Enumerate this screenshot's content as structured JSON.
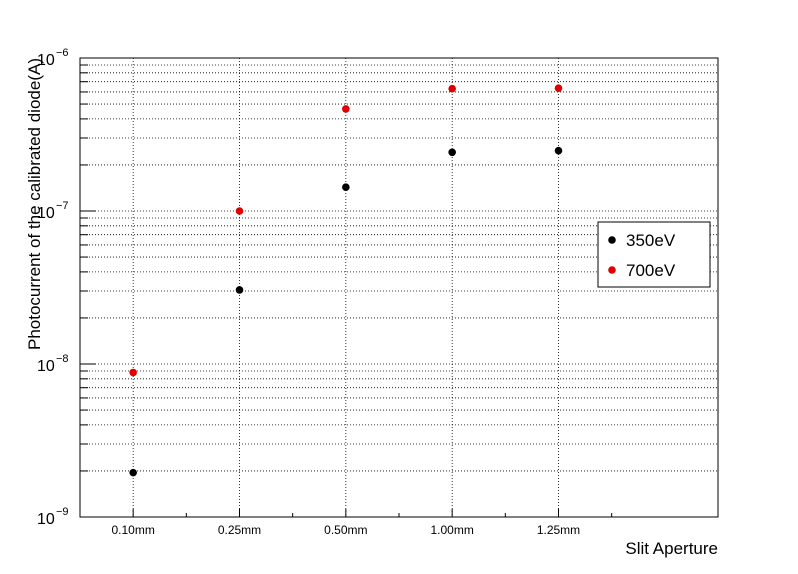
{
  "chart_data": {
    "type": "scatter",
    "title": "",
    "xlabel": "Slit Aperture",
    "ylabel": "Photocurrent of the calibrated diode(A)",
    "categories": [
      "0.10mm",
      "0.25mm",
      "0.50mm",
      "1.00mm",
      "1.25mm"
    ],
    "y_scale": "log",
    "ylim": [
      1e-09,
      1e-06
    ],
    "y_ticks": [
      {
        "base": "10",
        "exp": "−9",
        "value": 1e-09
      },
      {
        "base": "10",
        "exp": "−8",
        "value": 1e-08
      },
      {
        "base": "10",
        "exp": "−7",
        "value": 1e-07
      },
      {
        "base": "10",
        "exp": "−6",
        "value": 1e-06
      }
    ],
    "grid": true,
    "legend_position": "right",
    "series": [
      {
        "name": "350eV",
        "color": "#000000",
        "values": [
          1.95e-09,
          3.05e-08,
          1.43e-07,
          2.42e-07,
          2.48e-07
        ]
      },
      {
        "name": "700eV",
        "color": "#e00000",
        "values": [
          8.8e-09,
          1e-07,
          4.65e-07,
          6.3e-07,
          6.35e-07
        ]
      }
    ]
  }
}
